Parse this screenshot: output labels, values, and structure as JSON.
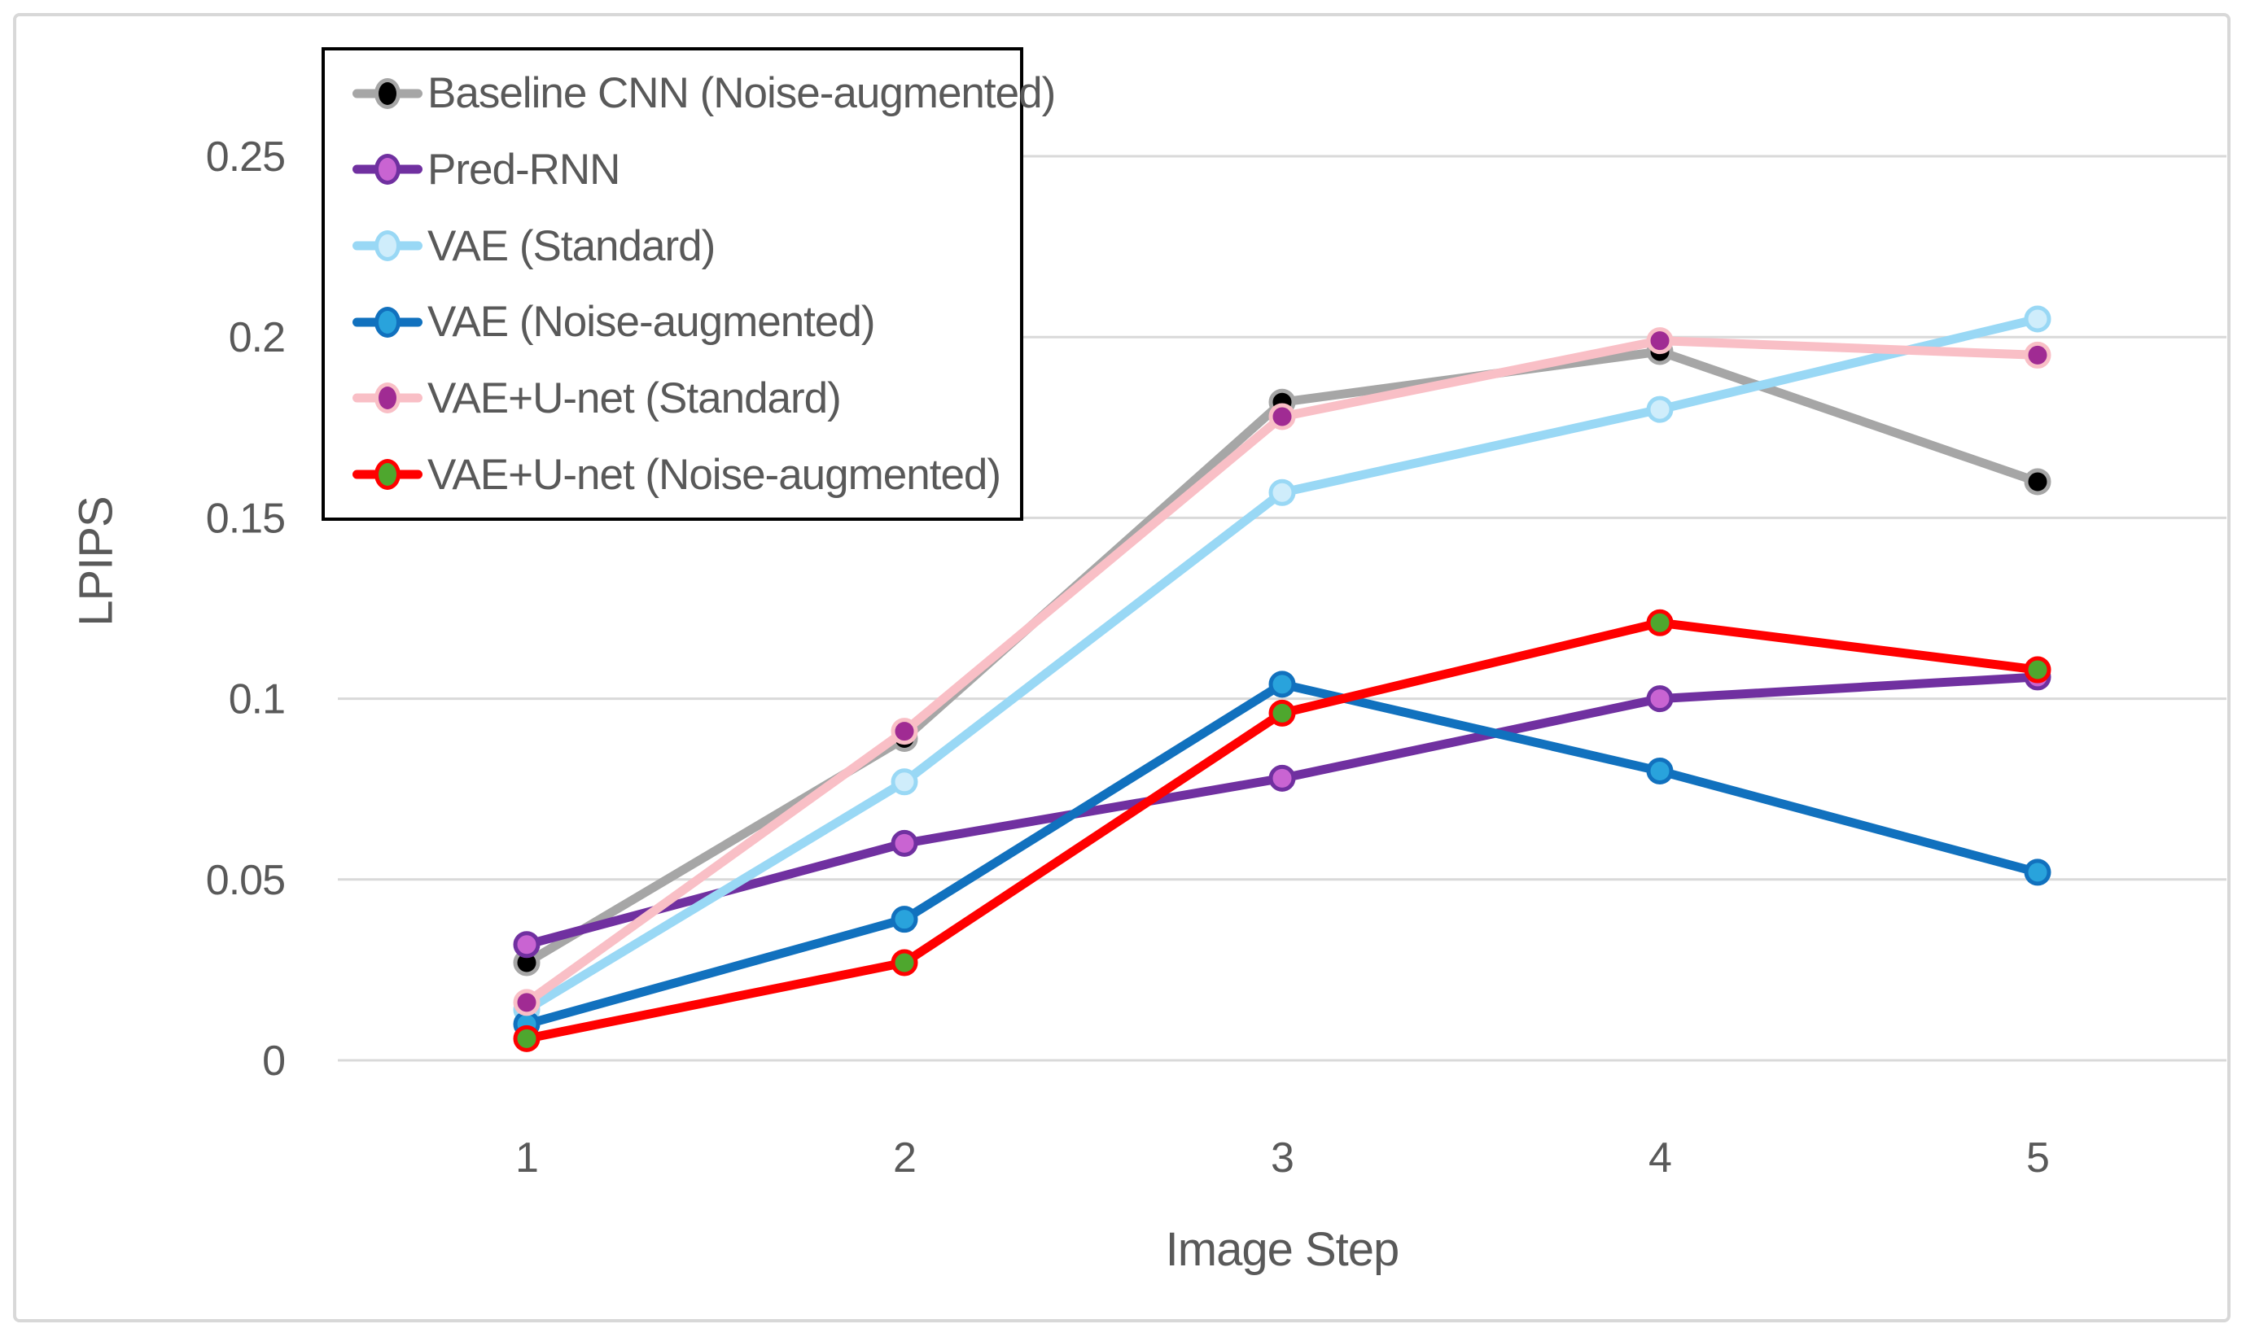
{
  "chart_data": {
    "type": "line",
    "title": "",
    "xlabel": "Image Step",
    "ylabel": "LPIPS",
    "x": [
      1,
      2,
      3,
      4,
      5
    ],
    "xtick_labels": [
      "1",
      "2",
      "3",
      "4",
      "5"
    ],
    "ylim": [
      0,
      0.25
    ],
    "yticks": [
      0,
      0.05,
      0.1,
      0.15,
      0.2,
      0.25
    ],
    "ytick_labels": [
      "0",
      "0.05",
      "0.1",
      "0.15",
      "0.2",
      "0.25"
    ],
    "grid": "horizontal",
    "legend_position": "top-left-inside",
    "series": [
      {
        "name": "Baseline CNN (Noise-augmented)",
        "values": [
          0.027,
          0.089,
          0.182,
          0.196,
          0.16
        ],
        "line_color": "#A6A6A6",
        "marker_fill": "#000000",
        "marker_edge": "#A6A6A6"
      },
      {
        "name": "Pred-RNN",
        "values": [
          0.032,
          0.06,
          0.078,
          0.1,
          0.106
        ],
        "line_color": "#7030A0",
        "marker_fill": "#C964D2",
        "marker_edge": "#7030A0"
      },
      {
        "name": "VAE (Standard)",
        "values": [
          0.014,
          0.077,
          0.157,
          0.18,
          0.205
        ],
        "line_color": "#99D8F5",
        "marker_fill": "#CFEDFB",
        "marker_edge": "#99D8F5"
      },
      {
        "name": "VAE (Noise-augmented)",
        "values": [
          0.01,
          0.039,
          0.104,
          0.08,
          0.052
        ],
        "line_color": "#1171BE",
        "marker_fill": "#29A3DC",
        "marker_edge": "#1171BE"
      },
      {
        "name": "VAE+U-net (Standard)",
        "values": [
          0.016,
          0.091,
          0.178,
          0.199,
          0.195
        ],
        "line_color": "#F9BFC6",
        "marker_fill": "#A02B93",
        "marker_edge": "#F9BFC6"
      },
      {
        "name": "VAE+U-net (Noise-augmented)",
        "values": [
          0.006,
          0.027,
          0.096,
          0.121,
          0.108
        ],
        "line_color": "#FF0000",
        "marker_fill": "#4EA72E",
        "marker_edge": "#FF0000"
      }
    ],
    "colors": {
      "grid": "#D9D9D9",
      "text": "#595959",
      "frame": "#D8D8D8",
      "legend_border": "#000000",
      "background": "#FFFFFF"
    }
  }
}
